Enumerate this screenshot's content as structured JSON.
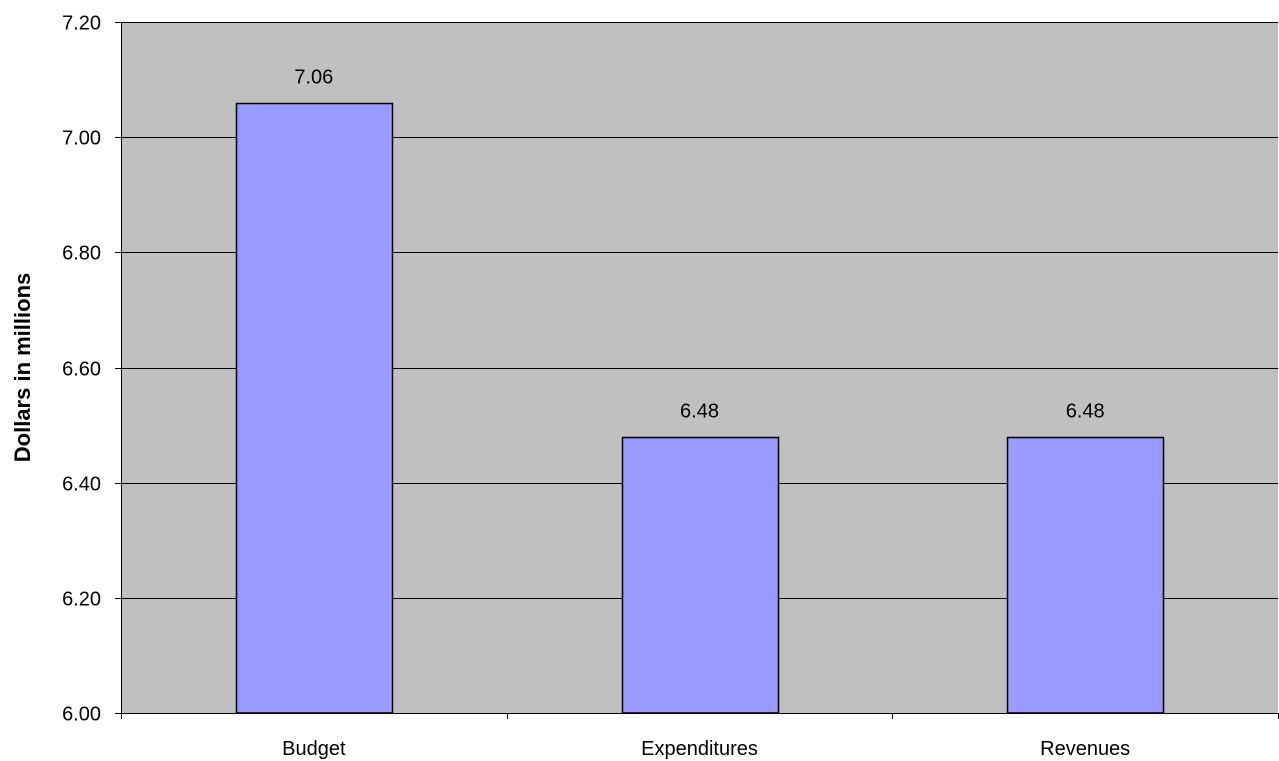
{
  "chart_data": {
    "type": "bar",
    "title": "",
    "xlabel": "",
    "ylabel": "Dollars in millions",
    "categories": [
      "Budget",
      "Expenditures",
      "Revenues"
    ],
    "series": [
      {
        "values": [
          7.06,
          6.48,
          6.48
        ],
        "data_labels": [
          "7.06",
          "6.48",
          "6.48"
        ]
      }
    ],
    "ylim": [
      6.0,
      7.2
    ],
    "yticks": [
      6.0,
      6.2,
      6.4,
      6.6,
      6.8,
      7.0,
      7.2
    ],
    "ytick_labels": [
      "6.00",
      "6.20",
      "6.40",
      "6.60",
      "6.80",
      "7.00",
      "7.20"
    ],
    "grid": true,
    "legend": "none",
    "colors": {
      "plot_background": "#C0C0C0",
      "bar_fill": "#9999FF",
      "bar_stroke": "#000000",
      "gridline": "#000000",
      "axis": "#000000"
    }
  }
}
